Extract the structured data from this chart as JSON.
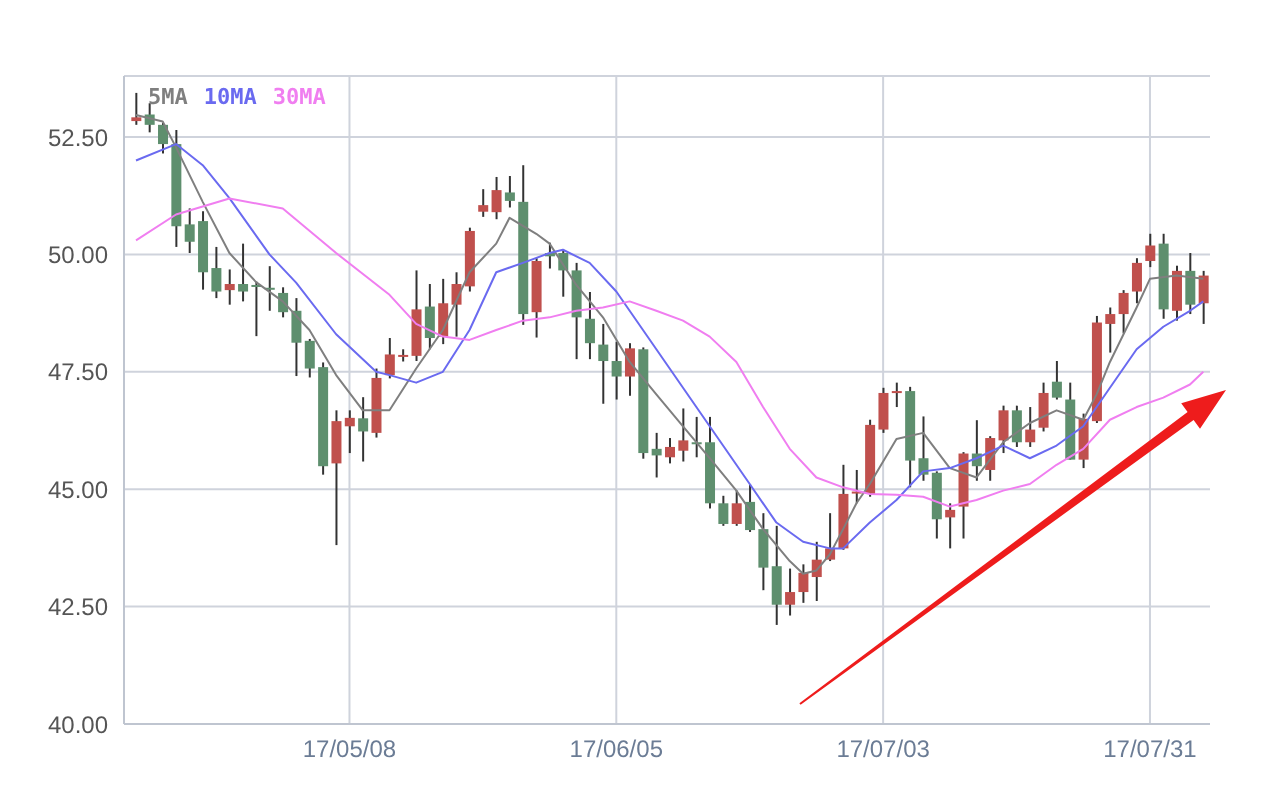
{
  "chart_data": {
    "type": "candlestick",
    "categories": [
      null,
      null,
      null,
      null,
      null,
      null,
      null,
      null,
      null,
      null,
      null,
      null,
      null,
      null,
      null,
      null,
      "17/05/08",
      null,
      null,
      null,
      null,
      null,
      null,
      null,
      null,
      null,
      null,
      null,
      null,
      null,
      null,
      null,
      null,
      null,
      null,
      null,
      "17/06/05",
      null,
      null,
      null,
      null,
      null,
      null,
      null,
      null,
      null,
      null,
      null,
      null,
      null,
      null,
      null,
      null,
      null,
      null,
      null,
      "17/07/03",
      null,
      null,
      null,
      null,
      null,
      null,
      null,
      null,
      null,
      null,
      null,
      null,
      null,
      null,
      null,
      null,
      null,
      null,
      null,
      "17/07/31",
      null,
      null,
      null,
      null
    ],
    "ohlc": [
      [
        52.84,
        53.44,
        52.76,
        52.92
      ],
      [
        52.98,
        53.22,
        52.6,
        52.76
      ],
      [
        52.76,
        52.8,
        52.15,
        52.35
      ],
      [
        52.35,
        52.65,
        50.16,
        50.6
      ],
      [
        50.64,
        50.98,
        50.03,
        50.27
      ],
      [
        50.71,
        50.92,
        49.25,
        49.62
      ],
      [
        49.71,
        50.16,
        49.07,
        49.21
      ],
      [
        49.24,
        49.68,
        48.93,
        49.37
      ],
      [
        49.37,
        50.23,
        49.0,
        49.21
      ],
      [
        49.35,
        49.42,
        48.26,
        49.34
      ],
      [
        49.29,
        49.75,
        48.8,
        49.27
      ],
      [
        49.18,
        49.3,
        48.66,
        48.77
      ],
      [
        48.8,
        49.07,
        47.41,
        48.12
      ],
      [
        48.16,
        48.2,
        47.38,
        47.57
      ],
      [
        47.6,
        47.7,
        45.31,
        45.49
      ],
      [
        45.55,
        46.68,
        43.81,
        46.45
      ],
      [
        46.34,
        46.68,
        45.77,
        46.52
      ],
      [
        46.51,
        46.96,
        45.59,
        46.23
      ],
      [
        46.2,
        47.57,
        46.1,
        47.37
      ],
      [
        47.43,
        48.22,
        47.36,
        47.87
      ],
      [
        47.84,
        47.98,
        47.72,
        47.86
      ],
      [
        47.84,
        49.66,
        47.73,
        48.83
      ],
      [
        48.89,
        49.37,
        47.98,
        48.22
      ],
      [
        48.25,
        49.48,
        48.09,
        48.96
      ],
      [
        48.93,
        49.62,
        48.25,
        49.37
      ],
      [
        49.32,
        50.57,
        49.21,
        50.5
      ],
      [
        50.91,
        51.39,
        50.8,
        51.05
      ],
      [
        50.9,
        51.65,
        50.75,
        51.37
      ],
      [
        51.32,
        51.67,
        51.0,
        51.14
      ],
      [
        51.12,
        51.9,
        48.5,
        48.73
      ],
      [
        48.77,
        49.92,
        48.23,
        49.86
      ],
      [
        50.03,
        50.25,
        49.7,
        49.96
      ],
      [
        50.03,
        50.1,
        49.1,
        49.66
      ],
      [
        49.66,
        49.82,
        47.77,
        48.66
      ],
      [
        48.63,
        49.2,
        47.77,
        48.11
      ],
      [
        48.08,
        48.52,
        46.82,
        47.73
      ],
      [
        47.73,
        48.14,
        46.91,
        47.4
      ],
      [
        47.4,
        48.11,
        46.99,
        48.0
      ],
      [
        47.98,
        48.02,
        45.65,
        45.77
      ],
      [
        45.86,
        46.2,
        45.25,
        45.72
      ],
      [
        45.68,
        46.09,
        45.55,
        45.9
      ],
      [
        45.82,
        46.72,
        45.59,
        46.04
      ],
      [
        46.0,
        46.54,
        45.68,
        45.98
      ],
      [
        46.0,
        46.54,
        44.59,
        44.7
      ],
      [
        44.7,
        44.86,
        44.22,
        44.26
      ],
      [
        44.26,
        44.97,
        44.22,
        44.7
      ],
      [
        44.73,
        45.11,
        44.09,
        44.13
      ],
      [
        44.15,
        44.49,
        42.85,
        43.33
      ],
      [
        43.36,
        44.22,
        42.11,
        42.54
      ],
      [
        42.54,
        43.31,
        42.31,
        42.81
      ],
      [
        42.81,
        43.4,
        42.58,
        43.22
      ],
      [
        43.13,
        43.88,
        42.62,
        43.5
      ],
      [
        43.5,
        44.49,
        43.47,
        43.74
      ],
      [
        43.74,
        45.52,
        43.71,
        44.9
      ],
      [
        44.92,
        45.41,
        44.7,
        44.95
      ],
      [
        44.9,
        46.48,
        44.84,
        46.37
      ],
      [
        46.27,
        47.16,
        46.2,
        47.05
      ],
      [
        47.07,
        47.27,
        46.75,
        47.09
      ],
      [
        47.09,
        47.18,
        45.04,
        45.61
      ],
      [
        45.66,
        46.55,
        45.18,
        45.31
      ],
      [
        45.35,
        45.38,
        43.95,
        44.36
      ],
      [
        44.4,
        44.7,
        43.74,
        44.56
      ],
      [
        44.63,
        45.79,
        43.95,
        45.76
      ],
      [
        45.76,
        46.47,
        45.18,
        45.49
      ],
      [
        45.41,
        46.13,
        45.18,
        46.09
      ],
      [
        46.04,
        46.78,
        45.77,
        46.68
      ],
      [
        46.68,
        46.78,
        45.9,
        46.0
      ],
      [
        46.0,
        46.75,
        45.9,
        46.27
      ],
      [
        46.31,
        47.27,
        46.23,
        47.05
      ],
      [
        47.29,
        47.73,
        46.91,
        46.95
      ],
      [
        46.91,
        47.27,
        45.63,
        45.63
      ],
      [
        45.63,
        46.61,
        45.45,
        46.5
      ],
      [
        46.45,
        48.69,
        46.41,
        48.55
      ],
      [
        48.52,
        48.87,
        47.91,
        48.73
      ],
      [
        48.73,
        49.24,
        48.32,
        49.18
      ],
      [
        49.21,
        49.92,
        48.96,
        49.82
      ],
      [
        49.86,
        50.44,
        49.73,
        50.19
      ],
      [
        50.23,
        50.44,
        48.63,
        48.83
      ],
      [
        48.8,
        49.76,
        48.59,
        49.65
      ],
      [
        49.65,
        50.03,
        48.73,
        48.93
      ],
      [
        48.96,
        49.65,
        48.52,
        49.55
      ]
    ],
    "series": [
      {
        "name": "5MA",
        "type": "line",
        "color": "#7f7f7f",
        "values": [
          52.97,
          null,
          52.83,
          52.28,
          null,
          51.12,
          null,
          50.03,
          null,
          49.41,
          null,
          49.0,
          null,
          48.39,
          null,
          47.43,
          null,
          46.68,
          null,
          46.68,
          null,
          47.57,
          null,
          48.39,
          null,
          49.62,
          null,
          50.23,
          50.78,
          null,
          50.44,
          50.23,
          null,
          49.35,
          null,
          48.66,
          null,
          47.71,
          null,
          47.02,
          null,
          46.34,
          null,
          45.66,
          null,
          44.97,
          null,
          44.15,
          null,
          43.47,
          43.2,
          43.27,
          43.61,
          44.15,
          44.7,
          45.11,
          null,
          46.07,
          null,
          46.2,
          null,
          45.45,
          null,
          45.25,
          null,
          46.0,
          null,
          46.41,
          null,
          46.68,
          null,
          46.48,
          47.02,
          47.71,
          null,
          48.87,
          49.48,
          null,
          49.55,
          null,
          49.48
        ]
      },
      {
        "name": "10MA",
        "type": "line",
        "color": "#6a6af0",
        "values": [
          52.0,
          null,
          null,
          52.35,
          null,
          51.9,
          null,
          51.2,
          null,
          null,
          50.0,
          null,
          49.4,
          null,
          null,
          48.3,
          null,
          null,
          47.5,
          47.43,
          null,
          47.27,
          null,
          47.5,
          null,
          48.39,
          null,
          49.62,
          null,
          49.82,
          null,
          50.03,
          50.1,
          null,
          49.82,
          null,
          49.21,
          null,
          48.39,
          null,
          47.57,
          null,
          46.75,
          null,
          45.93,
          null,
          45.11,
          null,
          44.29,
          null,
          43.88,
          null,
          43.74,
          43.74,
          null,
          44.29,
          null,
          44.77,
          null,
          45.38,
          null,
          45.45,
          null,
          45.66,
          null,
          45.93,
          null,
          45.66,
          null,
          45.93,
          null,
          46.34,
          null,
          47.16,
          null,
          47.98,
          null,
          48.46,
          null,
          48.8,
          49.0
        ]
      },
      {
        "name": "30MA",
        "type": "line",
        "color": "#f07ef0",
        "values": [
          50.3,
          null,
          null,
          50.85,
          null,
          null,
          null,
          51.19,
          null,
          null,
          null,
          50.98,
          null,
          null,
          null,
          50.03,
          null,
          null,
          null,
          49.14,
          null,
          48.52,
          null,
          48.25,
          null,
          48.18,
          null,
          48.39,
          null,
          48.59,
          null,
          48.66,
          null,
          48.8,
          null,
          48.87,
          null,
          49.0,
          null,
          48.8,
          null,
          48.59,
          null,
          48.25,
          null,
          47.71,
          null,
          46.75,
          null,
          45.86,
          null,
          45.25,
          null,
          45.04,
          null,
          44.9,
          null,
          44.88,
          null,
          44.84,
          null,
          44.63,
          null,
          44.77,
          null,
          44.97,
          null,
          45.11,
          null,
          45.52,
          null,
          45.86,
          null,
          46.48,
          null,
          46.75,
          null,
          46.95,
          null,
          47.23,
          47.5
        ]
      }
    ],
    "ylim": [
      40,
      53.8
    ],
    "yticks": [
      {
        "value": 40,
        "label": "40.00"
      },
      {
        "value": 42.5,
        "label": "42.50"
      },
      {
        "value": 45,
        "label": "45.00"
      },
      {
        "value": 47.5,
        "label": "47.50"
      },
      {
        "value": 50,
        "label": "50.00"
      },
      {
        "value": 52.5,
        "label": "52.50"
      }
    ],
    "grid": true,
    "legend": "top left"
  }
}
